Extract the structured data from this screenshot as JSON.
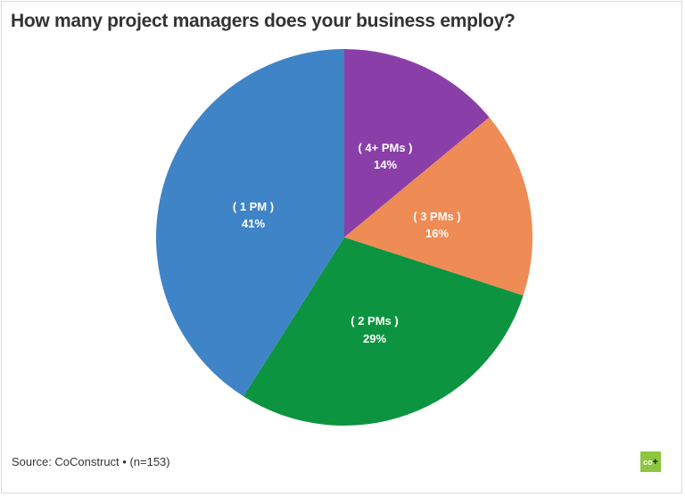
{
  "chart_data": {
    "type": "pie",
    "title": "How many project managers does your business employ?",
    "categories": [
      "( 4+ PMs )",
      "( 3 PMs )",
      "( 2 PMs )",
      "( 1 PM )"
    ],
    "values": [
      14,
      16,
      29,
      41
    ],
    "unit": "%",
    "colors": [
      "#8a3fa8",
      "#ef8b55",
      "#0d9440",
      "#3f84c6"
    ],
    "start_angle_deg": 0,
    "direction": "clockwise",
    "legend": "none (labels inside slices)",
    "source": "Source: CoConstruct • (n=153)"
  },
  "header": {
    "title": "How many project managers does your business employ?"
  },
  "slices": [
    {
      "label": "( 4+ PMs )",
      "value": "14%"
    },
    {
      "label": "( 3 PMs )",
      "value": "16%"
    },
    {
      "label": "( 2 PMs )",
      "value": "29%"
    },
    {
      "label": "( 1 PM )",
      "value": "41%"
    }
  ],
  "footer": {
    "source": "Source: CoConstruct • (n=153)",
    "logo_text": "co",
    "logo_plus": "+"
  },
  "colors": {
    "purple": "#8a3fa8",
    "orange": "#ef8b55",
    "green": "#0d9440",
    "blue": "#3f84c6",
    "logo": "#8dc63f"
  }
}
